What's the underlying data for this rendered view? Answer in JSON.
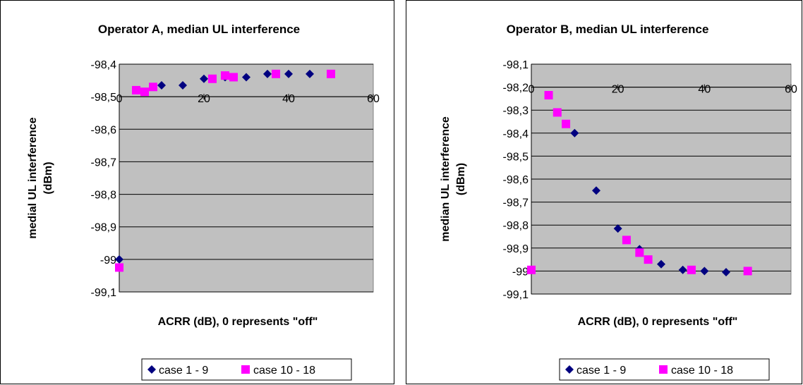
{
  "colors": {
    "plot_area": "#C0C0C0",
    "series1": "#000080",
    "series2": "#FF00FF",
    "gridline": "#000000"
  },
  "chart_data": [
    {
      "type": "scatter",
      "title": "Operator A, median UL interference",
      "xlabel": "ACRR (dB), 0 represents \"off\"",
      "ylabel_lines": [
        "medial UL interference",
        "(dBm)"
      ],
      "xlim": [
        0,
        60
      ],
      "ylim": [
        -99.1,
        -98.4
      ],
      "x_ticks": [
        0,
        20,
        40,
        60
      ],
      "x_tick_labels": [
        "0",
        "20",
        "40",
        "60"
      ],
      "y_ticks": [
        -98.4,
        -98.5,
        -98.6,
        -98.7,
        -98.8,
        -98.9,
        -99,
        -99.1
      ],
      "y_tick_labels": [
        "-98,4",
        "-98,5",
        "-98,6",
        "-98,7",
        "-98,8",
        "-98,9",
        "-99",
        "-99,1"
      ],
      "grid": "horizontal",
      "legend_position": "bottom",
      "series": [
        {
          "name": "case 1 - 9",
          "marker": "diamond",
          "x": [
            0,
            10,
            15,
            20,
            25,
            30,
            35,
            40,
            45
          ],
          "y": [
            -99.0,
            -98.465,
            -98.465,
            -98.445,
            -98.44,
            -98.44,
            -98.43,
            -98.43,
            -98.43
          ]
        },
        {
          "name": "case 10 - 18",
          "marker": "square",
          "x": [
            0,
            4,
            6,
            8,
            22,
            25,
            27,
            37,
            50
          ],
          "y": [
            -99.025,
            -98.48,
            -98.485,
            -98.47,
            -98.445,
            -98.435,
            -98.44,
            -98.43,
            -98.43
          ]
        }
      ]
    },
    {
      "type": "scatter",
      "title": "Operator B, median UL interference",
      "xlabel": "ACRR (dB), 0 represents \"off\"",
      "ylabel_lines": [
        "median UL interference",
        "(dBm)"
      ],
      "xlim": [
        0,
        60
      ],
      "ylim": [
        -99.1,
        -98.1
      ],
      "x_ticks": [
        0,
        20,
        40,
        60
      ],
      "x_tick_labels": [
        "0",
        "20",
        "40",
        "60"
      ],
      "y_ticks": [
        -98.1,
        -98.2,
        -98.3,
        -98.4,
        -98.5,
        -98.6,
        -98.7,
        -98.8,
        -98.9,
        -99,
        -99.1
      ],
      "y_tick_labels": [
        "-98,1",
        "-98,2",
        "-98,3",
        "-98,4",
        "-98,5",
        "-98,6",
        "-98,7",
        "-98,8",
        "-98,9",
        "-99",
        "-99,1"
      ],
      "grid": "horizontal",
      "legend_position": "bottom",
      "series": [
        {
          "name": "case 1 - 9",
          "marker": "diamond",
          "x": [
            10,
            15,
            20,
            25,
            30,
            35,
            40,
            45
          ],
          "y": [
            -98.4,
            -98.65,
            -98.815,
            -98.905,
            -98.97,
            -98.995,
            -99.0,
            -99.005
          ]
        },
        {
          "name": "case 10 - 18",
          "marker": "square",
          "x": [
            0,
            4,
            6,
            8,
            22,
            25,
            27,
            37,
            50
          ],
          "y": [
            -98.995,
            -98.235,
            -98.31,
            -98.36,
            -98.865,
            -98.92,
            -98.95,
            -98.995,
            -99.0
          ]
        }
      ]
    }
  ]
}
